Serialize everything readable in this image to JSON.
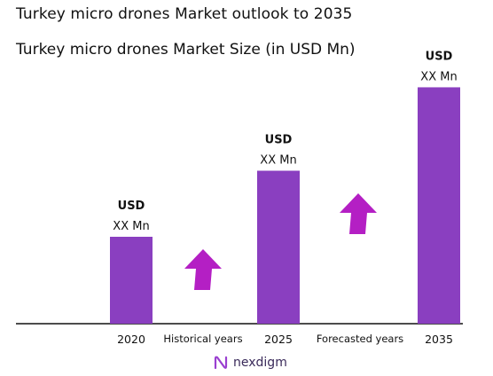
{
  "header": {
    "title": "Turkey micro drones Market outlook to 2035",
    "subtitle": "Turkey micro drones Market Size (in USD Mn)"
  },
  "chart_data": {
    "type": "bar",
    "categories": [
      "2020",
      "2025",
      "2035"
    ],
    "values": [
      1.0,
      1.76,
      2.72
    ],
    "value_labels": [
      {
        "line1": "USD",
        "line2": "XX Mn"
      },
      {
        "line1": "USD",
        "line2": "XX Mn"
      },
      {
        "line1": "USD",
        "line2": "XX Mn"
      }
    ],
    "period_labels": [
      "Historical years",
      "Forecasted years"
    ],
    "bar_color": "#8a3fc0",
    "arrow_color": "#b41fc4",
    "grid": false,
    "legend": "none"
  },
  "brand": {
    "name": "nexdigm",
    "color": "#7a2fb0"
  }
}
